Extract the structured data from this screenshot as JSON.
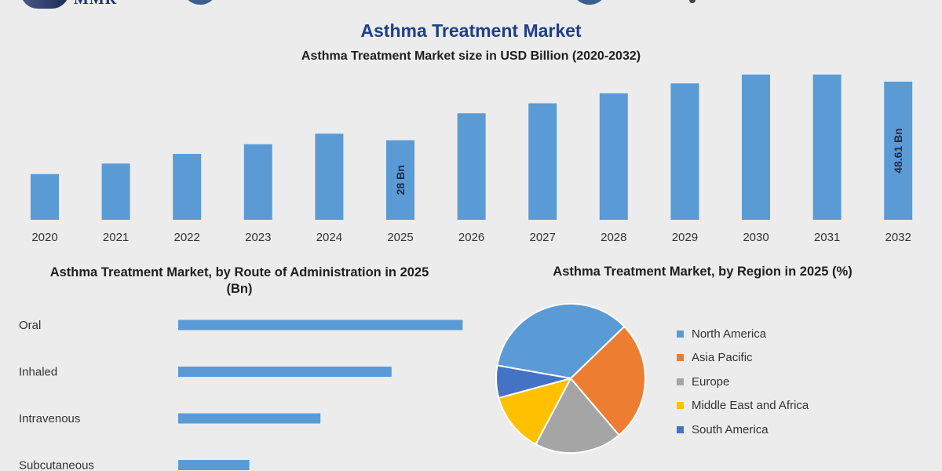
{
  "header": {
    "logo_text": "MMR",
    "title": "Asthma Treatment Market",
    "subtitle": "Asthma Treatment Market size in USD Billion (2020-2032)"
  },
  "colors": {
    "bar": "#5b9bd5",
    "title": "#1f3f8a",
    "background": "#ececec"
  },
  "chart_data": [
    {
      "type": "bar",
      "title": "Asthma Treatment Market size in USD Billion (2020-2032)",
      "categories": [
        "2020",
        "2021",
        "2022",
        "2023",
        "2024",
        "2025",
        "2026",
        "2027",
        "2028",
        "2029",
        "2030",
        "2031",
        "2032"
      ],
      "values": [
        16.1,
        19.8,
        23.2,
        26.6,
        30.3,
        28,
        37.5,
        41.0,
        44.5,
        48.0,
        51.5,
        55.0,
        48.61
      ],
      "data_labels": [
        "",
        "",
        "",
        "",
        "",
        "28 Bn",
        "",
        "",
        "",
        "",
        "",
        "",
        "48.61 Bn"
      ],
      "xlabel": "",
      "ylabel": "",
      "grid": false,
      "legend": "none"
    },
    {
      "type": "bar",
      "orientation": "horizontal",
      "title": "Asthma Treatment Market, by Route of Administration in 2025 (Bn)",
      "title_lines": [
        "Asthma Treatment Market, by Route of Administration in 2025",
        "(Bn)"
      ],
      "categories": [
        "Oral",
        "Inhaled",
        "Intravenous",
        "Subcutaneous"
      ],
      "values": [
        12.0,
        9.0,
        6.0,
        3.0
      ],
      "grid": false,
      "legend": "none"
    },
    {
      "type": "pie",
      "title": "Asthma Treatment Market, by Region in 2025 (%)",
      "labels": [
        "North America",
        "Asia Pacific",
        "Europe",
        "Middle East and Africa",
        "South America"
      ],
      "values": [
        35,
        26,
        19,
        13,
        7
      ],
      "colors": [
        "#5b9bd5",
        "#ed7d31",
        "#a5a5a5",
        "#ffc000",
        "#4472c4"
      ],
      "start_angle_deg": -170,
      "legend": "right"
    }
  ]
}
